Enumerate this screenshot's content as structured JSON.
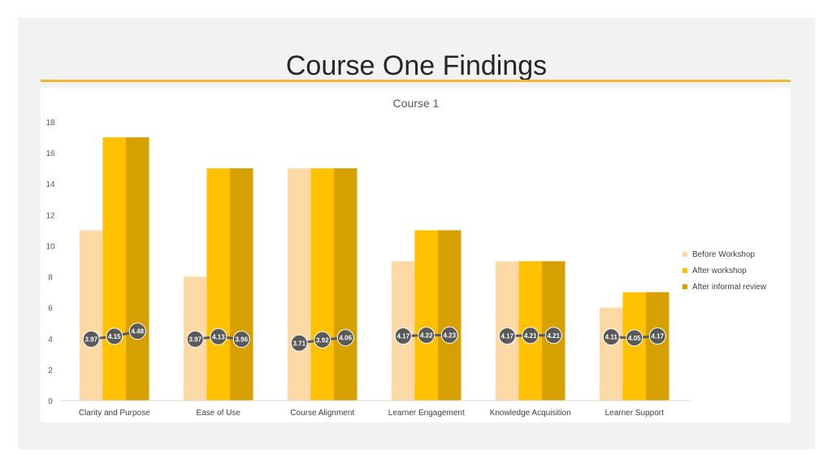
{
  "slide": {
    "title": "Course One Findings"
  },
  "colors": {
    "before": "#fdd9a5",
    "after": "#ffc000",
    "review": "#d6a000",
    "line": "#595959",
    "accent_rule": "#f2b632"
  },
  "chart_data": {
    "type": "bar",
    "title": "Course 1",
    "xlabel": "",
    "ylabel": "",
    "ylim": [
      0,
      18
    ],
    "yticks": [
      0,
      2,
      4,
      6,
      8,
      10,
      12,
      14,
      16,
      18
    ],
    "grid": false,
    "legend_position": "right",
    "categories": [
      "Clarity and Purpose",
      "Ease of Use",
      "Course Alignment",
      "Learner Engagement",
      "Knowledge Acquisition",
      "Learner Support"
    ],
    "series": [
      {
        "name": "Before Workshop",
        "values": [
          11,
          8,
          15,
          9,
          9,
          6
        ]
      },
      {
        "name": "After workshop",
        "values": [
          17,
          15,
          15,
          11,
          9,
          7
        ]
      },
      {
        "name": "After informal review",
        "values": [
          17,
          15,
          15,
          11,
          9,
          7
        ]
      }
    ],
    "line_overlay": {
      "type": "line",
      "labels": [
        [
          "3.97",
          "4.15",
          "4.48"
        ],
        [
          "3.97",
          "4.13",
          "3.96"
        ],
        [
          "3.71",
          "3.92",
          "4.06"
        ],
        [
          "4.17",
          "4.22",
          "4.23"
        ],
        [
          "4.17",
          "4.21",
          "4.21"
        ],
        [
          "4.11",
          "4.05",
          "4.17"
        ]
      ],
      "values": [
        [
          3.97,
          4.15,
          4.48
        ],
        [
          3.97,
          4.13,
          3.96
        ],
        [
          3.71,
          3.92,
          4.06
        ],
        [
          4.17,
          4.22,
          4.23
        ],
        [
          4.17,
          4.21,
          4.21
        ],
        [
          4.11,
          4.05,
          4.17
        ]
      ]
    }
  }
}
